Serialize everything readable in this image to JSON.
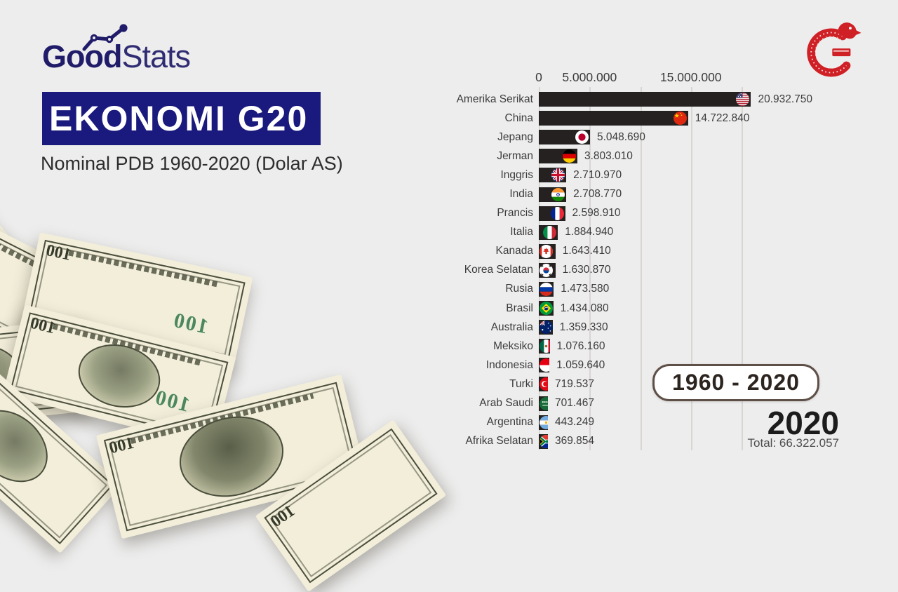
{
  "brand": {
    "name_bold": "Good",
    "name_light": "Stats",
    "color": "#201c69"
  },
  "header": {
    "title": "EKONOMI G20",
    "subtitle": "Nominal PDB 1960-2020 (Dolar AS)",
    "title_bg": "#1a1a7e",
    "title_color": "#ffffff"
  },
  "period_badge": {
    "label": "1960 - 2020",
    "border_color": "#5e4f47"
  },
  "year_panel": {
    "year": "2020",
    "total": "Total: 66.322.057"
  },
  "decor": {
    "bill_denomination": "100"
  },
  "colors": {
    "background": "#ededed",
    "bar": "#242120",
    "logo_red": "#cf2026",
    "gridline": "#d8d6d3"
  },
  "chart_data": {
    "type": "bar",
    "orientation": "horizontal",
    "title": "EKONOMI G20",
    "subtitle": "Nominal PDB 1960-2020 (Dolar AS)",
    "year": "2020",
    "total": 66322057,
    "total_label": "Total: 66.322.057",
    "axis": {
      "min": 0,
      "max": 21500000,
      "tick_labels": [
        {
          "value": 0,
          "label": "0"
        },
        {
          "value": 5000000,
          "label": "5.000.000"
        },
        {
          "value": 15000000,
          "label": "15.000.000"
        }
      ],
      "gridlines": [
        0,
        5000000,
        10000000,
        15000000,
        20000000
      ]
    },
    "rows": [
      {
        "label": "Amerika Serikat",
        "value": 20932750,
        "value_label": "20.932.750",
        "flag": "amerika-serikat"
      },
      {
        "label": "China",
        "value": 14722840,
        "value_label": "14.722.840",
        "flag": "china"
      },
      {
        "label": "Jepang",
        "value": 5048690,
        "value_label": "5.048.690",
        "flag": "jepang"
      },
      {
        "label": "Jerman",
        "value": 3803010,
        "value_label": "3.803.010",
        "flag": "jerman"
      },
      {
        "label": "Inggris",
        "value": 2710970,
        "value_label": "2.710.970",
        "flag": "inggris"
      },
      {
        "label": "India",
        "value": 2708770,
        "value_label": "2.708.770",
        "flag": "india"
      },
      {
        "label": "Prancis",
        "value": 2598910,
        "value_label": "2.598.910",
        "flag": "prancis"
      },
      {
        "label": "Italia",
        "value": 1884940,
        "value_label": "1.884.940",
        "flag": "italia"
      },
      {
        "label": "Kanada",
        "value": 1643410,
        "value_label": "1.643.410",
        "flag": "kanada"
      },
      {
        "label": "Korea Selatan",
        "value": 1630870,
        "value_label": "1.630.870",
        "flag": "korea-selatan"
      },
      {
        "label": "Rusia",
        "value": 1473580,
        "value_label": "1.473.580",
        "flag": "rusia"
      },
      {
        "label": "Brasil",
        "value": 1434080,
        "value_label": "1.434.080",
        "flag": "brasil"
      },
      {
        "label": "Australia",
        "value": 1359330,
        "value_label": "1.359.330",
        "flag": "australia"
      },
      {
        "label": "Meksiko",
        "value": 1076160,
        "value_label": "1.076.160",
        "flag": "meksiko"
      },
      {
        "label": "Indonesia",
        "value": 1059640,
        "value_label": "1.059.640",
        "flag": "indonesia"
      },
      {
        "label": "Turki",
        "value": 719537,
        "value_label": "719.537",
        "flag": "turki"
      },
      {
        "label": "Arab Saudi",
        "value": 701467,
        "value_label": "701.467",
        "flag": "arab-saudi"
      },
      {
        "label": "Argentina",
        "value": 443249,
        "value_label": "443.249",
        "flag": "argentina"
      },
      {
        "label": "Afrika Selatan",
        "value": 369854,
        "value_label": "369.854",
        "flag": "afrika-selatan"
      }
    ]
  }
}
